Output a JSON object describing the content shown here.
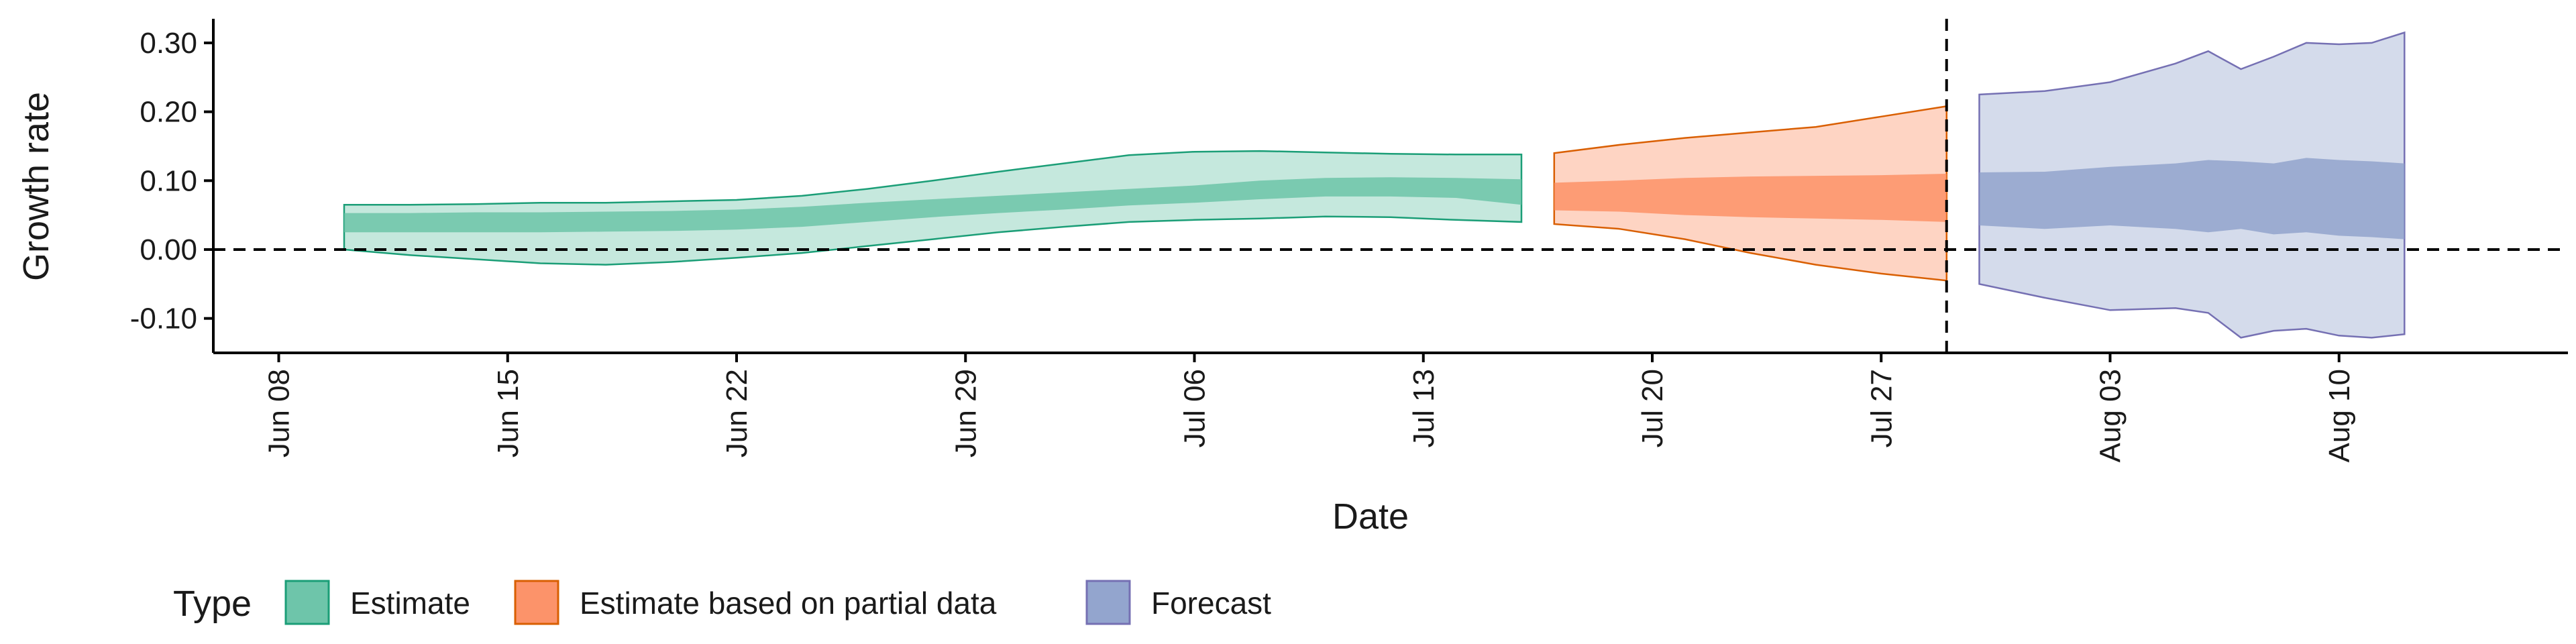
{
  "chart_data": {
    "type": "area",
    "title": "",
    "xlabel": "Date",
    "ylabel": "Growth rate",
    "x_ticks": [
      "Jun 08",
      "Jun 15",
      "Jun 22",
      "Jun 29",
      "Jul 06",
      "Jul 13",
      "Jul 20",
      "Jul 27",
      "Aug 03",
      "Aug 10"
    ],
    "y_ticks": [
      "-0.10",
      "0.00",
      "0.10",
      "0.20",
      "0.30"
    ],
    "xlim": [
      "2020-06-06",
      "2020-08-17"
    ],
    "ylim": [
      -0.15,
      0.335
    ],
    "hline": 0,
    "vline": "2020-07-29",
    "grid": false,
    "legend": {
      "title": "Type",
      "position": "bottom",
      "entries": [
        {
          "name": "Estimate",
          "fill": "#66C2A5",
          "stroke": "#1B9E77"
        },
        {
          "name": "Estimate based on partial data",
          "fill": "#FC8D62",
          "stroke": "#D95F02"
        },
        {
          "name": "Forecast",
          "fill": "#8DA0CB",
          "stroke": "#7570B3"
        }
      ]
    },
    "series": [
      {
        "name": "Estimate",
        "color": "#1B9E77",
        "fill": "#66C2A5",
        "dates": [
          "2020-06-10",
          "2020-06-12",
          "2020-06-14",
          "2020-06-16",
          "2020-06-18",
          "2020-06-20",
          "2020-06-22",
          "2020-06-24",
          "2020-06-26",
          "2020-06-28",
          "2020-06-30",
          "2020-07-02",
          "2020-07-04",
          "2020-07-06",
          "2020-07-08",
          "2020-07-10",
          "2020-07-12",
          "2020-07-14",
          "2020-07-16"
        ],
        "lower90": [
          0.0,
          -0.008,
          -0.014,
          -0.02,
          -0.022,
          -0.018,
          -0.012,
          -0.005,
          0.005,
          0.015,
          0.025,
          0.033,
          0.04,
          0.043,
          0.045,
          0.048,
          0.047,
          0.043,
          0.04
        ],
        "upper90": [
          0.065,
          0.065,
          0.066,
          0.068,
          0.068,
          0.07,
          0.072,
          0.078,
          0.088,
          0.1,
          0.113,
          0.125,
          0.137,
          0.142,
          0.143,
          0.141,
          0.139,
          0.138,
          0.138
        ],
        "lower50": [
          0.025,
          0.025,
          0.025,
          0.025,
          0.026,
          0.027,
          0.029,
          0.033,
          0.04,
          0.047,
          0.053,
          0.058,
          0.064,
          0.068,
          0.073,
          0.077,
          0.077,
          0.075,
          0.065
        ],
        "upper50": [
          0.053,
          0.053,
          0.054,
          0.054,
          0.055,
          0.056,
          0.058,
          0.062,
          0.068,
          0.073,
          0.078,
          0.083,
          0.088,
          0.093,
          0.1,
          0.104,
          0.105,
          0.104,
          0.102
        ]
      },
      {
        "name": "Estimate based on partial data",
        "color": "#D95F02",
        "fill": "#FC8D62",
        "dates": [
          "2020-07-17",
          "2020-07-19",
          "2020-07-21",
          "2020-07-23",
          "2020-07-25",
          "2020-07-27",
          "2020-07-29"
        ],
        "lower90": [
          0.037,
          0.03,
          0.015,
          -0.005,
          -0.022,
          -0.035,
          -0.045
        ],
        "upper90": [
          0.14,
          0.152,
          0.162,
          0.17,
          0.178,
          0.193,
          0.208
        ],
        "lower50": [
          0.057,
          0.055,
          0.05,
          0.047,
          0.045,
          0.043,
          0.04
        ],
        "upper50": [
          0.097,
          0.1,
          0.104,
          0.106,
          0.107,
          0.108,
          0.11
        ]
      },
      {
        "name": "Forecast",
        "color": "#7570B3",
        "fill": "#8DA0CB",
        "dates": [
          "2020-07-30",
          "2020-08-01",
          "2020-08-03",
          "2020-08-05",
          "2020-08-06",
          "2020-08-07",
          "2020-08-08",
          "2020-08-09",
          "2020-08-10",
          "2020-08-11",
          "2020-08-12"
        ],
        "lower90": [
          -0.05,
          -0.07,
          -0.088,
          -0.085,
          -0.092,
          -0.128,
          -0.118,
          -0.115,
          -0.125,
          -0.128,
          -0.123
        ],
        "upper90": [
          0.225,
          0.23,
          0.243,
          0.27,
          0.288,
          0.262,
          0.28,
          0.3,
          0.298,
          0.3,
          0.315
        ],
        "lower50": [
          0.035,
          0.03,
          0.035,
          0.03,
          0.025,
          0.03,
          0.022,
          0.025,
          0.02,
          0.018,
          0.015
        ],
        "upper50": [
          0.112,
          0.113,
          0.12,
          0.125,
          0.13,
          0.128,
          0.125,
          0.133,
          0.13,
          0.128,
          0.125
        ]
      }
    ]
  }
}
